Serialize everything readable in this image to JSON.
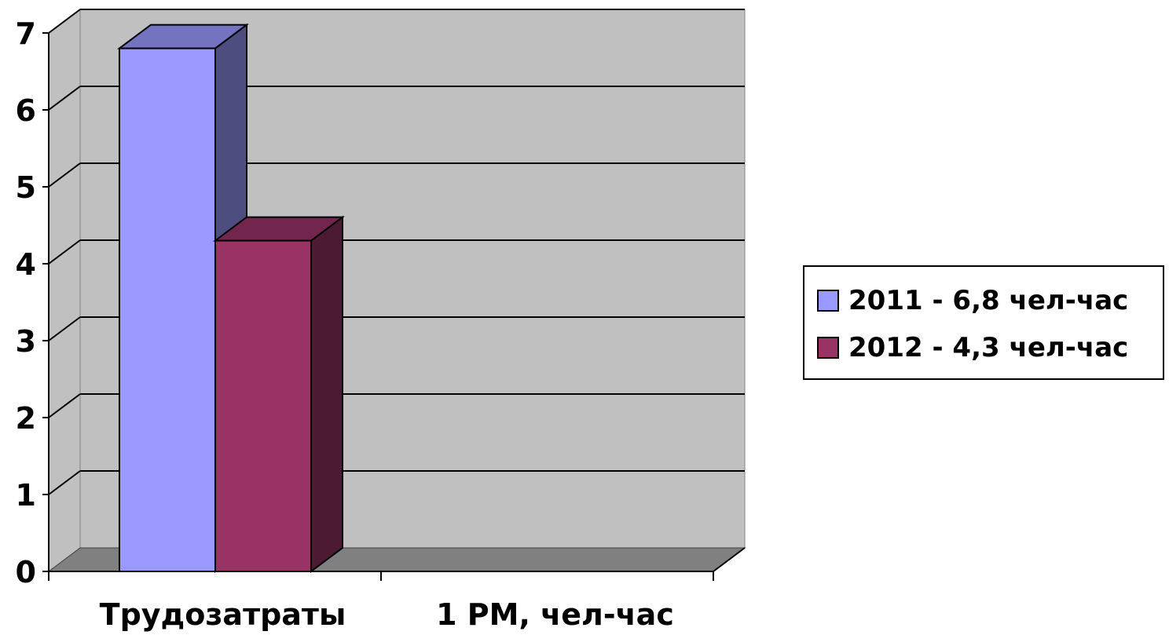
{
  "chart_data": {
    "type": "bar",
    "categories": [
      "Трудозатраты",
      "1 РМ, чел-час"
    ],
    "series": [
      {
        "name": "2011 - 6,8 чел-час",
        "values": [
          6.8,
          null
        ],
        "color": "#9999ff"
      },
      {
        "name": "2012 - 4,3 чел-час",
        "values": [
          4.3,
          null
        ],
        "color": "#993366"
      }
    ],
    "ylim": [
      0,
      7
    ],
    "yticks": [
      0,
      1,
      2,
      3,
      4,
      5,
      6,
      7
    ],
    "grid": true,
    "legend_position": "right",
    "colors": {
      "wall": "#c0c0c0",
      "floor": "#808080",
      "gridline": "#000000"
    }
  }
}
